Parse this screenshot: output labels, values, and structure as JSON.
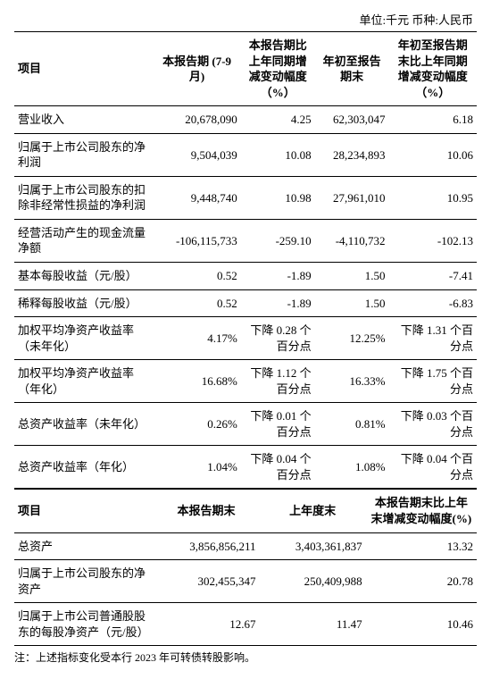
{
  "unit_line": "单位:千元    币种:人民币",
  "table1": {
    "headers": [
      "项目",
      "本报告期\n(7-9月)",
      "本报告期比上年同期增减变动幅度（%）",
      "年初至报告期末",
      "年初至报告期末比上年同期增减变动幅度（%）"
    ],
    "rows": [
      [
        "营业收入",
        "20,678,090",
        "4.25",
        "62,303,047",
        "6.18"
      ],
      [
        "归属于上市公司股东的净利润",
        "9,504,039",
        "10.08",
        "28,234,893",
        "10.06"
      ],
      [
        "归属于上市公司股东的扣除非经常性损益的净利润",
        "9,448,740",
        "10.98",
        "27,961,010",
        "10.95"
      ],
      [
        "经营活动产生的现金流量净额",
        "-106,115,733",
        "-259.10",
        "-4,110,732",
        "-102.13"
      ],
      [
        "基本每股收益（元/股）",
        "0.52",
        "-1.89",
        "1.50",
        "-7.41"
      ],
      [
        "稀释每股收益（元/股）",
        "0.52",
        "-1.89",
        "1.50",
        "-6.83"
      ],
      [
        "加权平均净资产收益率（未年化）",
        "4.17%",
        "下降 0.28 个百分点",
        "12.25%",
        "下降 1.31 个百分点"
      ],
      [
        "加权平均净资产收益率（年化）",
        "16.68%",
        "下降 1.12 个百分点",
        "16.33%",
        "下降 1.75 个百分点"
      ],
      [
        "总资产收益率（未年化）",
        "0.26%",
        "下降 0.01 个百分点",
        "0.81%",
        "下降 0.03 个百分点"
      ],
      [
        "总资产收益率（年化）",
        "1.04%",
        "下降 0.04 个百分点",
        "1.08%",
        "下降 0.04 个百分点"
      ]
    ]
  },
  "table2": {
    "headers": [
      "项目",
      "本报告期末",
      "上年度末",
      "本报告期末比上年末增减变动幅度(%)"
    ],
    "rows": [
      [
        "总资产",
        "3,856,856,211",
        "3,403,361,837",
        "13.32"
      ],
      [
        "归属于上市公司股东的净资产",
        "302,455,347",
        "250,409,988",
        "20.78"
      ],
      [
        "归属于上市公司普通股股东的每股净资产（元/股）",
        "12.67",
        "11.47",
        "10.46"
      ]
    ]
  },
  "note": "注：上述指标变化受本行 2023 年可转债转股影响。"
}
